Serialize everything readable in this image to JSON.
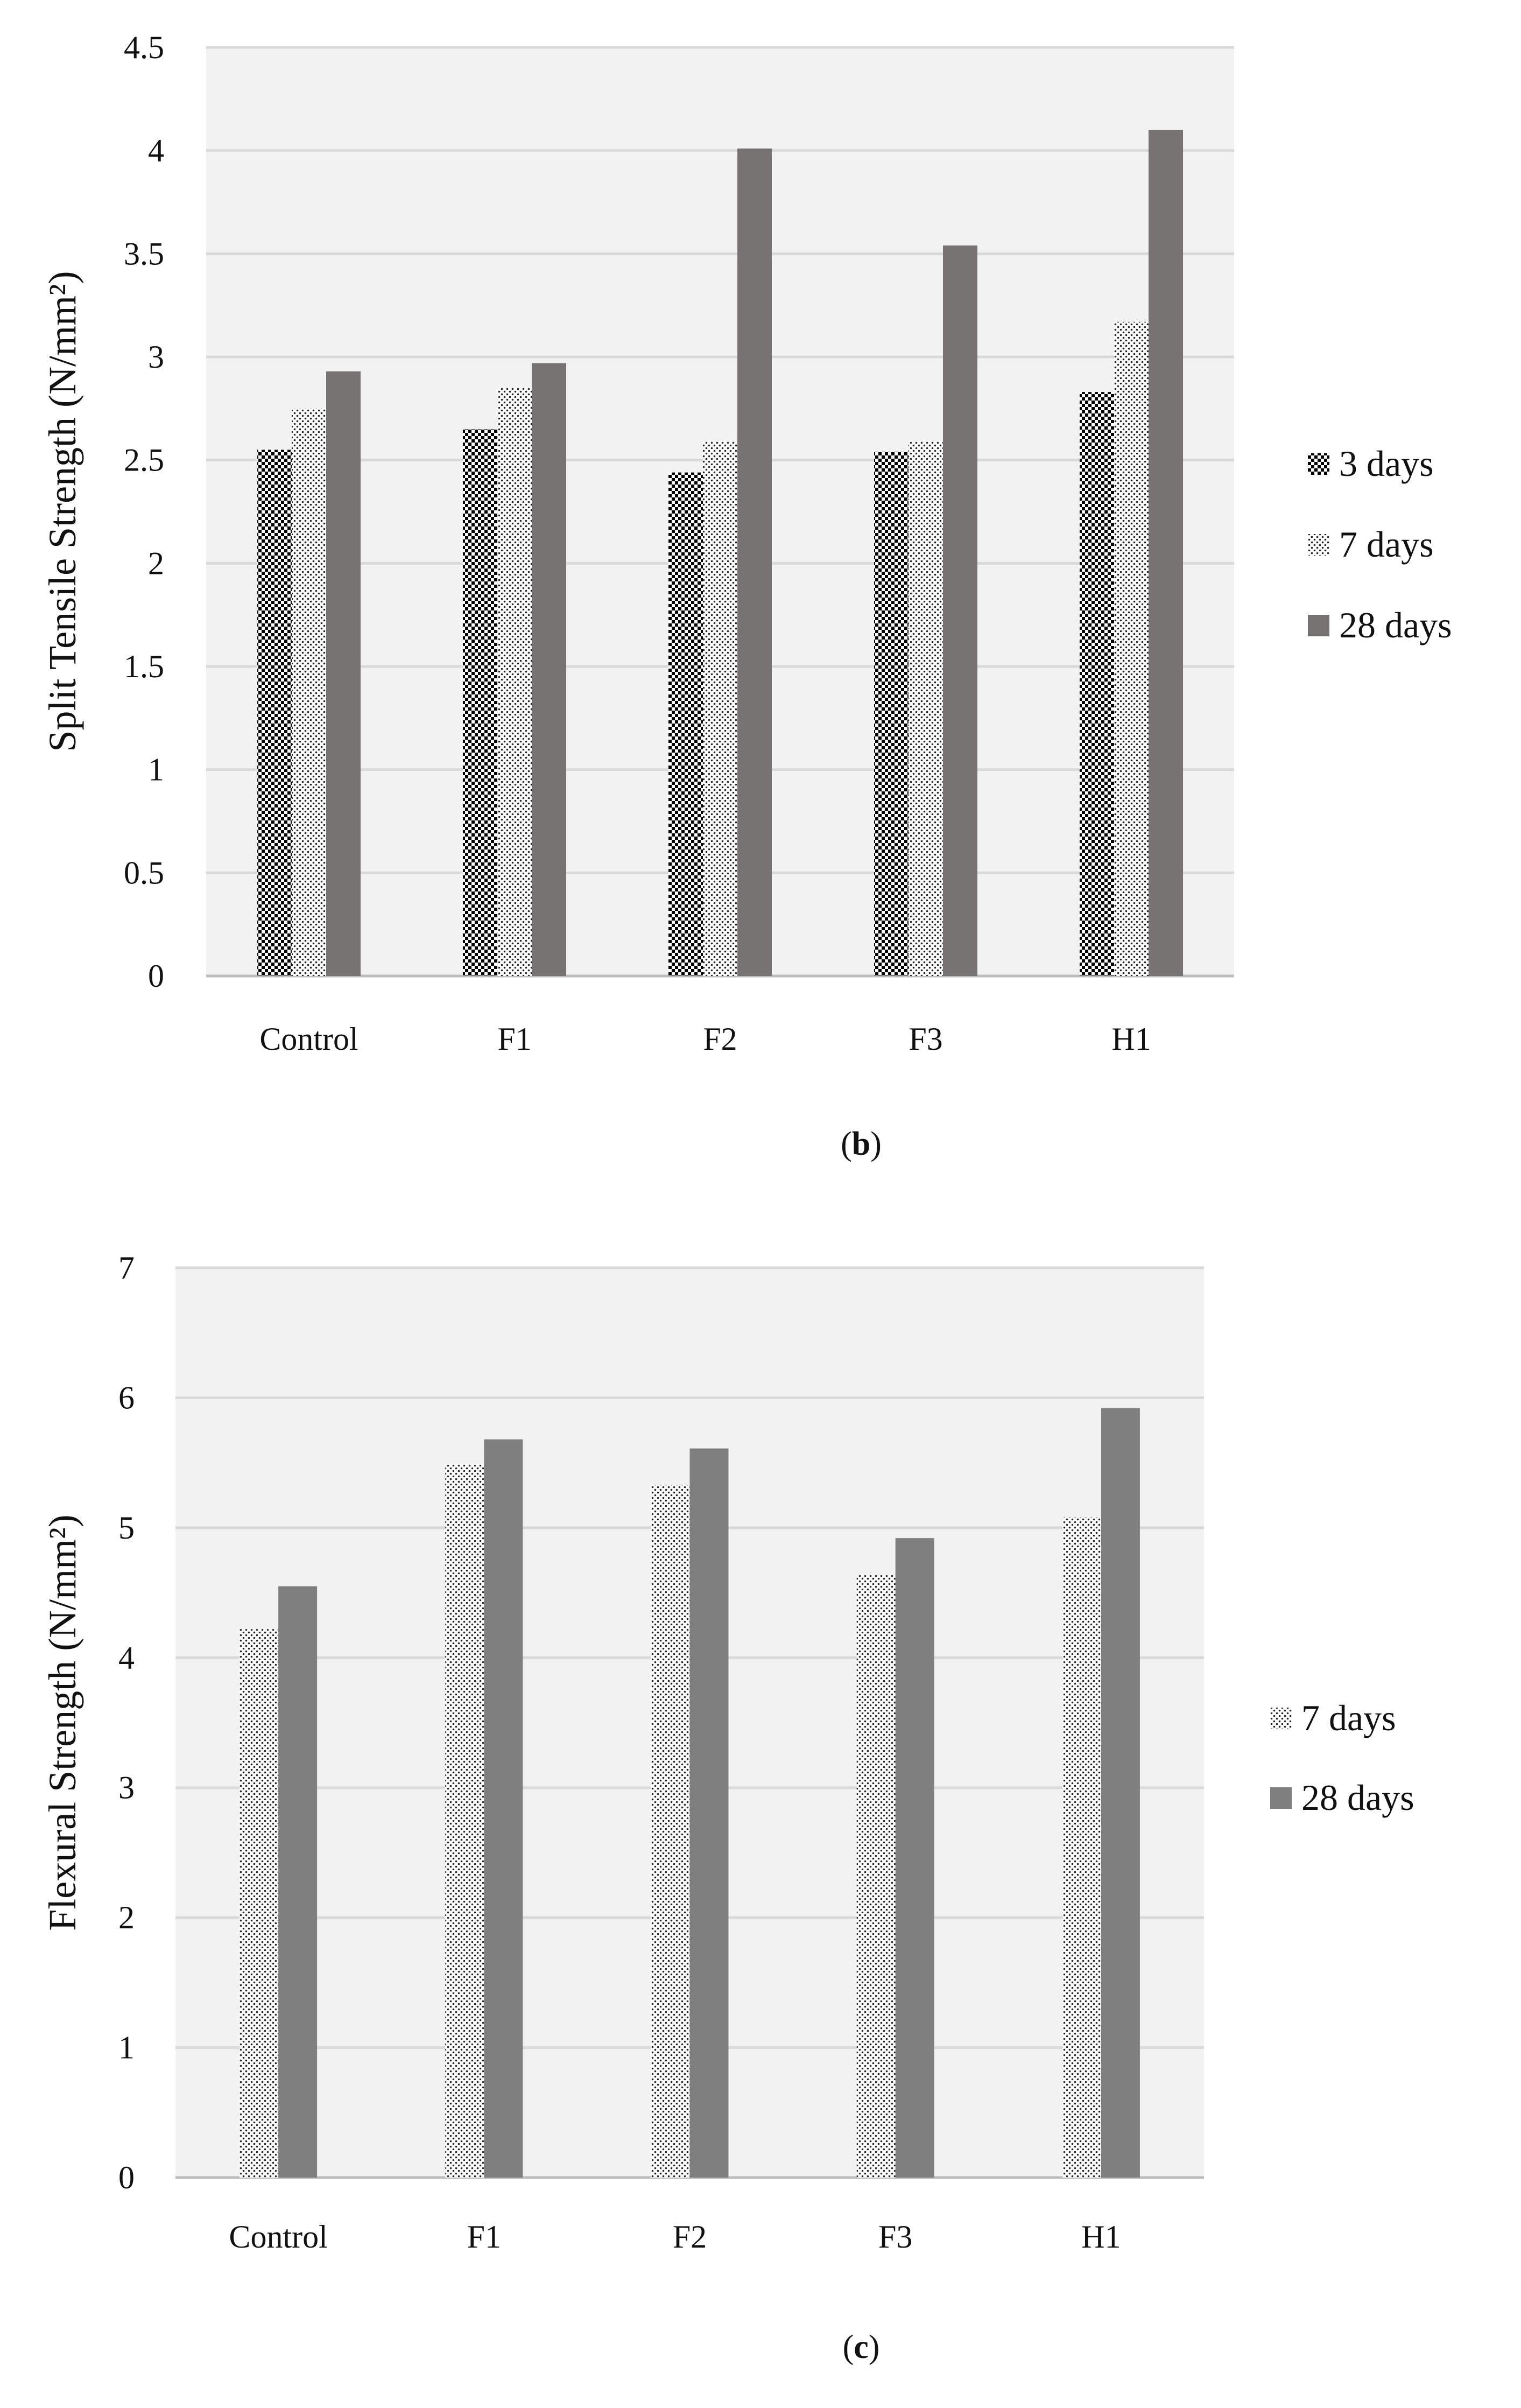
{
  "chart_data": [
    {
      "type": "bar",
      "caption_open": "(",
      "caption_letter": "b",
      "caption_close": ")",
      "title": "",
      "xlabel": "",
      "ylabel": "Split Tensile Strength (N/mm²)",
      "ylim": [
        0,
        4.5
      ],
      "yticks": [
        "0",
        "0.5",
        "1",
        "1.5",
        "2",
        "2.5",
        "3",
        "3.5",
        "4",
        "4.5"
      ],
      "categories": [
        "Control",
        "F1",
        "F2",
        "F3",
        "H1"
      ],
      "legend_position": "right",
      "grid": true,
      "series": [
        {
          "name": "3 days",
          "values": [
            2.55,
            2.65,
            2.44,
            2.54,
            2.83
          ],
          "pattern": "checker"
        },
        {
          "name": "7 days",
          "values": [
            2.75,
            2.85,
            2.59,
            2.59,
            3.17
          ],
          "pattern": "dots"
        },
        {
          "name": "28 days",
          "values": [
            2.93,
            2.97,
            4.01,
            3.54,
            4.1
          ],
          "pattern": "solid",
          "color": "#787373"
        }
      ]
    },
    {
      "type": "bar",
      "caption_open": "(",
      "caption_letter": "c",
      "caption_close": ")",
      "title": "",
      "xlabel": "",
      "ylabel": "Flexural Strength (N/mm²)",
      "ylim": [
        0,
        7
      ],
      "yticks": [
        "0",
        "1",
        "2",
        "3",
        "4",
        "5",
        "6",
        "7"
      ],
      "categories": [
        "Control",
        "F1",
        "F2",
        "F3",
        "H1"
      ],
      "legend_position": "right",
      "grid": true,
      "series": [
        {
          "name": "7 days",
          "values": [
            4.22,
            5.49,
            5.33,
            4.64,
            5.08
          ],
          "pattern": "dots"
        },
        {
          "name": "28 days",
          "values": [
            4.55,
            5.68,
            5.61,
            4.92,
            5.92
          ],
          "pattern": "solid",
          "color": "#7f7f7f"
        }
      ]
    }
  ]
}
